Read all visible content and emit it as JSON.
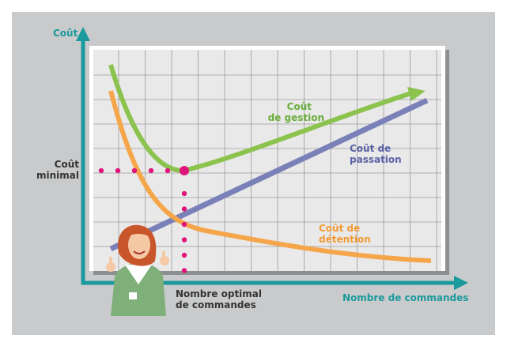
{
  "axes": {
    "y_label": "Coût",
    "x_label": "Nombre de commandes"
  },
  "labels": {
    "minimal_cost": [
      "Coût",
      "minimal"
    ],
    "management_cost": [
      "Coût",
      "de gestion"
    ],
    "ordering_cost": [
      "Coût de",
      "passation"
    ],
    "holding_cost": [
      "Coût de",
      "détention"
    ],
    "optimal_orders": [
      "Nombre optimal",
      "de commandes"
    ]
  }
}
